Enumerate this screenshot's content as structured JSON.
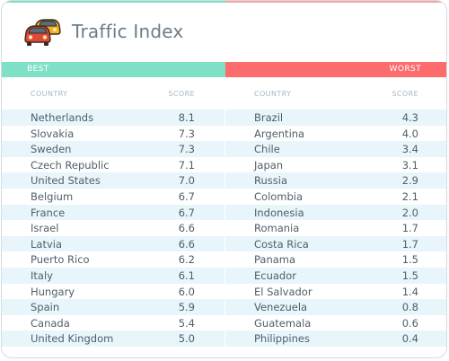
{
  "header": {
    "title": "Traffic Index",
    "logo_icon": "cars-icon"
  },
  "bands": {
    "best": "BEST",
    "worst": "WORST"
  },
  "columns": {
    "country": "COUNTRY",
    "score": "SCORE"
  },
  "colors": {
    "best": "#7fe0c8",
    "worst": "#fc6c6c",
    "row_stripe": "#e8f5fb"
  },
  "chart_data": [
    {
      "type": "table",
      "title": "BEST",
      "columns": [
        "COUNTRY",
        "SCORE"
      ],
      "rows": [
        {
          "country": "Netherlands",
          "score": "8.1"
        },
        {
          "country": "Slovakia",
          "score": "7.3"
        },
        {
          "country": "Sweden",
          "score": "7.3"
        },
        {
          "country": "Czech Republic",
          "score": "7.1"
        },
        {
          "country": "United States",
          "score": "7.0"
        },
        {
          "country": "Belgium",
          "score": "6.7"
        },
        {
          "country": "France",
          "score": "6.7"
        },
        {
          "country": "Israel",
          "score": "6.6"
        },
        {
          "country": "Latvia",
          "score": "6.6"
        },
        {
          "country": "Puerto Rico",
          "score": "6.2"
        },
        {
          "country": "Italy",
          "score": "6.1"
        },
        {
          "country": "Hungary",
          "score": "6.0"
        },
        {
          "country": "Spain",
          "score": "5.9"
        },
        {
          "country": "Canada",
          "score": "5.4"
        },
        {
          "country": "United Kingdom",
          "score": "5.0"
        }
      ]
    },
    {
      "type": "table",
      "title": "WORST",
      "columns": [
        "COUNTRY",
        "SCORE"
      ],
      "rows": [
        {
          "country": "Brazil",
          "score": "4.3"
        },
        {
          "country": "Argentina",
          "score": "4.0"
        },
        {
          "country": "Chile",
          "score": "3.4"
        },
        {
          "country": "Japan",
          "score": "3.1"
        },
        {
          "country": "Russia",
          "score": "2.9"
        },
        {
          "country": "Colombia",
          "score": "2.1"
        },
        {
          "country": "Indonesia",
          "score": "2.0"
        },
        {
          "country": "Romania",
          "score": "1.7"
        },
        {
          "country": "Costa Rica",
          "score": "1.7"
        },
        {
          "country": "Panama",
          "score": "1.5"
        },
        {
          "country": "Ecuador",
          "score": "1.5"
        },
        {
          "country": "El Salvador",
          "score": "1.4"
        },
        {
          "country": "Venezuela",
          "score": "0.8"
        },
        {
          "country": "Guatemala",
          "score": "0.6"
        },
        {
          "country": "Philippines",
          "score": "0.4"
        }
      ]
    }
  ]
}
